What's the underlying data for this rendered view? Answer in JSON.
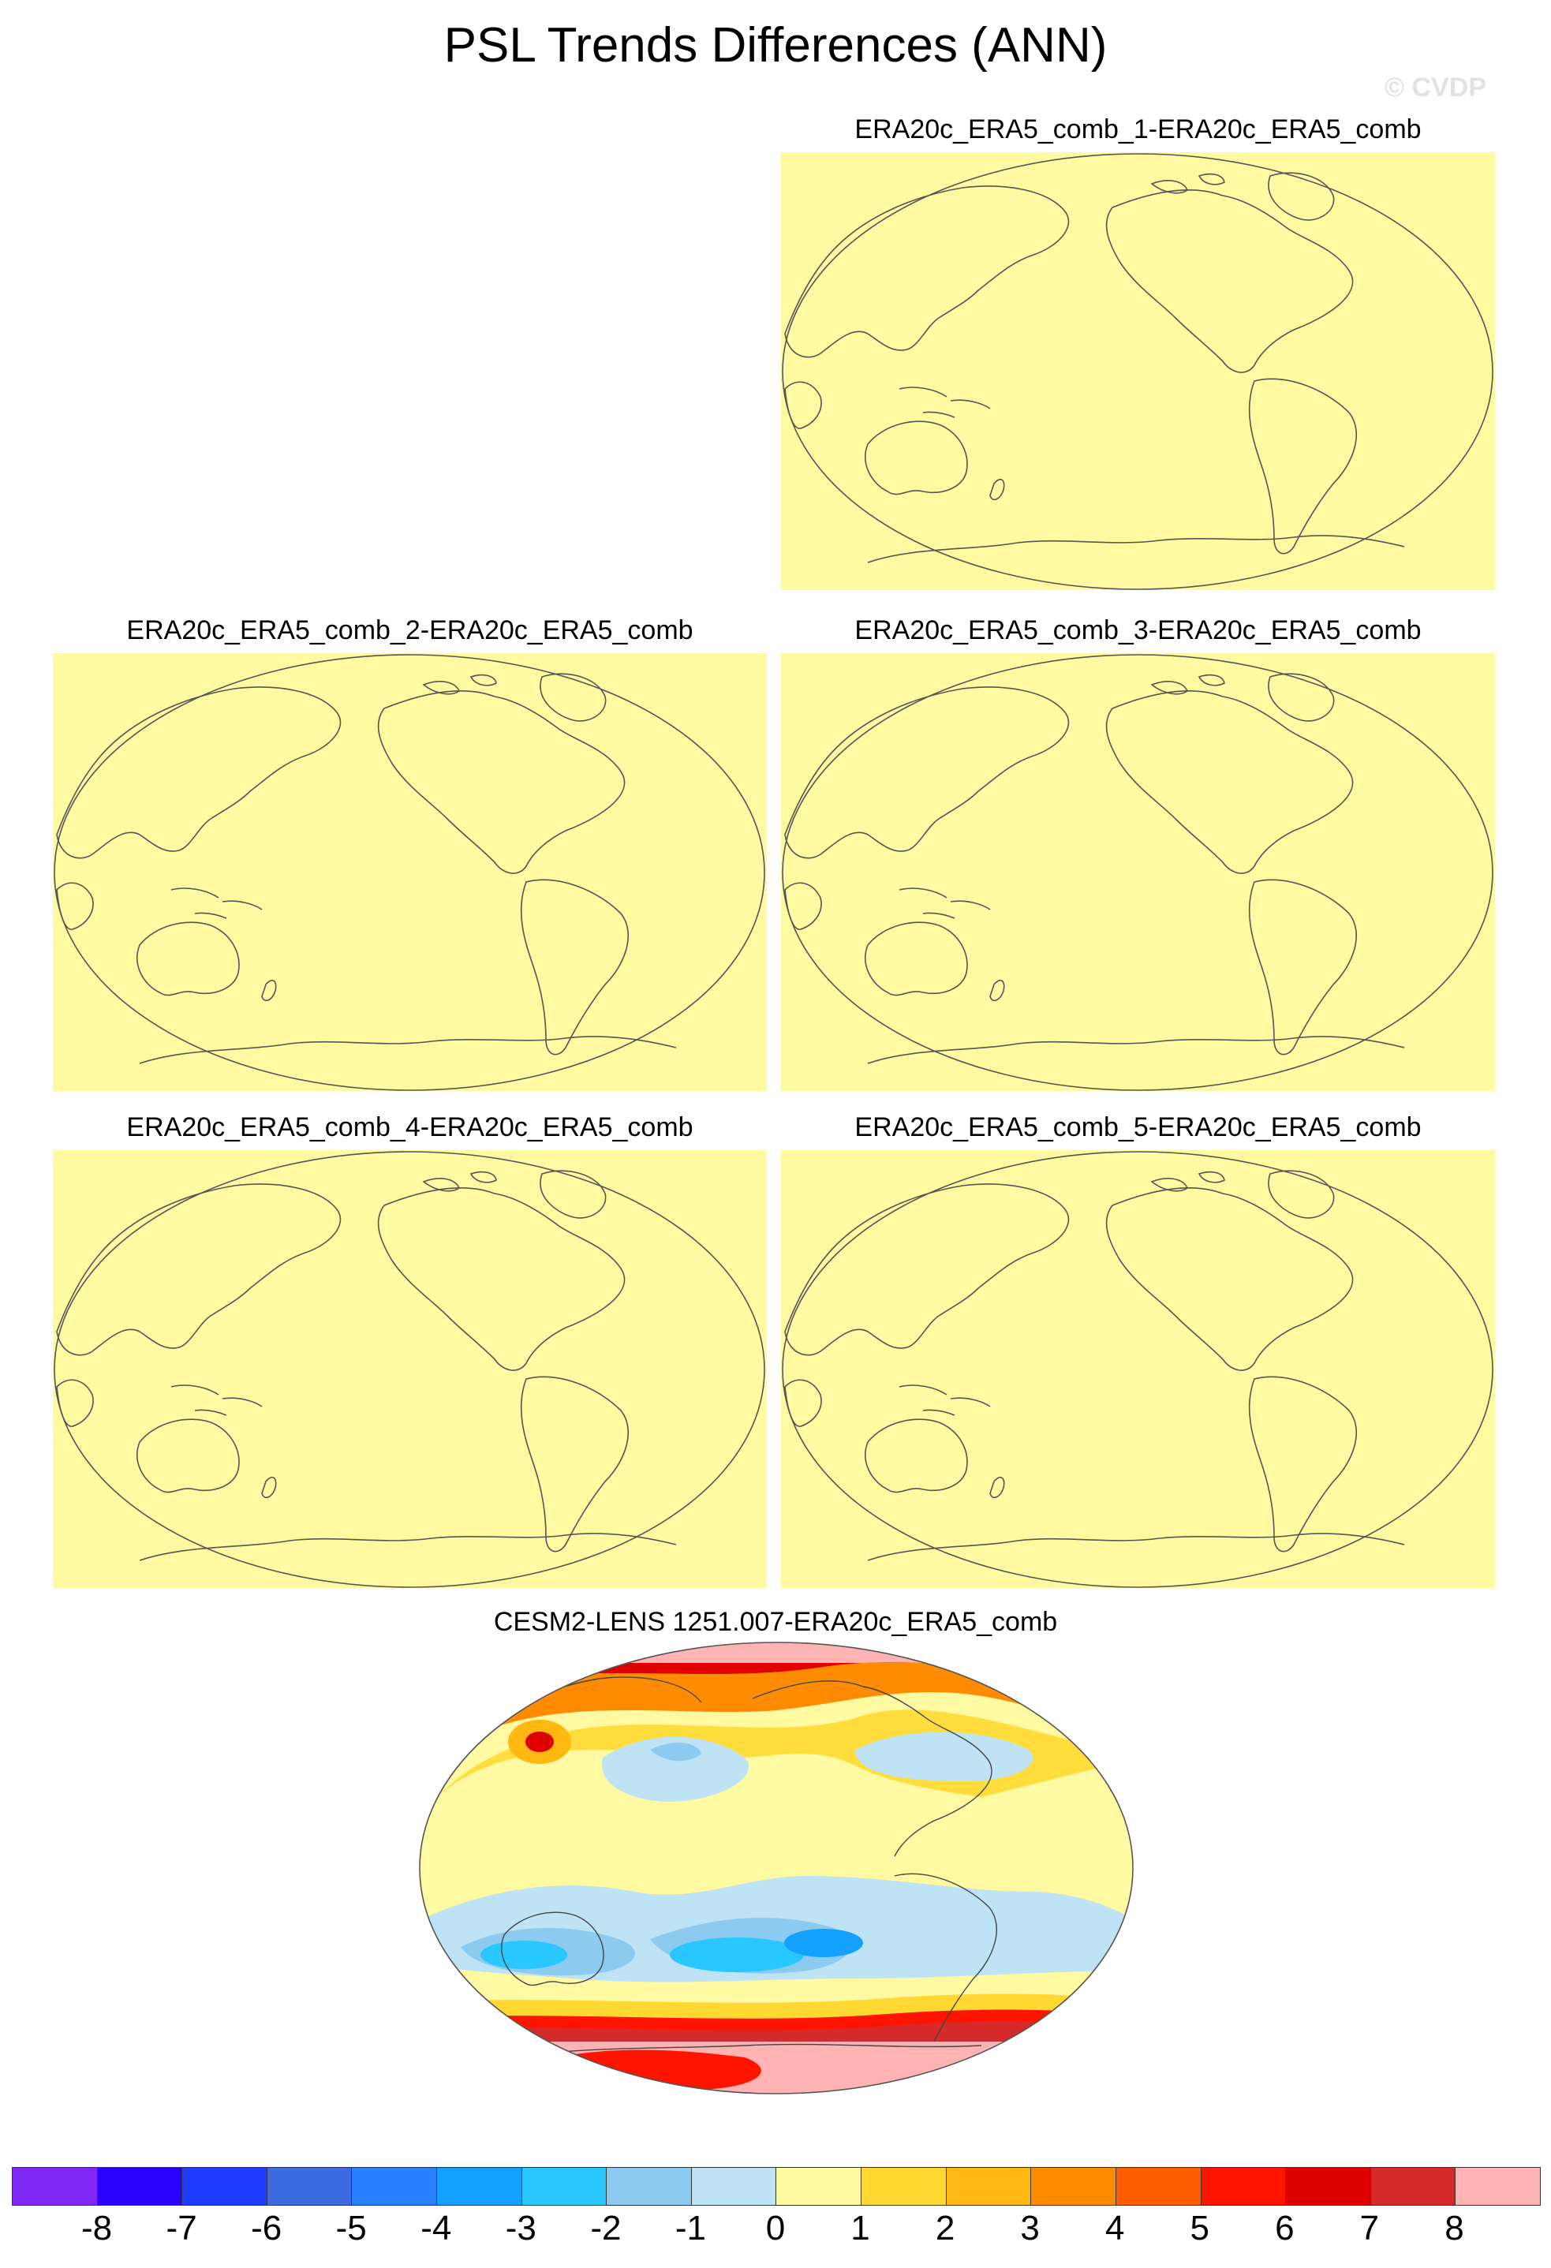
{
  "figure": {
    "title": "PSL Trends Differences (ANN)",
    "watermark": "© CVDP"
  },
  "panels": [
    {
      "title": "ERA20c_ERA5_comb_1-ERA20c_ERA5_comb",
      "fill_color": "#fff9a1"
    },
    {
      "title": "ERA20c_ERA5_comb_2-ERA20c_ERA5_comb",
      "fill_color": "#fff9a1"
    },
    {
      "title": "ERA20c_ERA5_comb_3-ERA20c_ERA5_comb",
      "fill_color": "#fff9a1"
    },
    {
      "title": "ERA20c_ERA5_comb_4-ERA20c_ERA5_comb",
      "fill_color": "#fff9a1"
    },
    {
      "title": "ERA20c_ERA5_comb_5-ERA20c_ERA5_comb",
      "fill_color": "#fff9a1"
    }
  ],
  "bottom_panel": {
    "title": "CESM2-LENS 1251.007-ERA20c_ERA5_comb"
  },
  "colorbar": {
    "colors": [
      "#7f27f5",
      "#2a00ff",
      "#1e3cff",
      "#3c6be0",
      "#2882ff",
      "#14a0ff",
      "#28c8ff",
      "#8ccaf0",
      "#bde3f5",
      "#fff9a1",
      "#ffd931",
      "#ffb812",
      "#ff8c00",
      "#ff5e00",
      "#ff1400",
      "#e00000",
      "#d62a2a",
      "#ffb3b3"
    ],
    "labels": [
      "-8",
      "-7",
      "-6",
      "-5",
      "-4",
      "-3",
      "-2",
      "-1",
      "0",
      "1",
      "2",
      "3",
      "4",
      "5",
      "6",
      "7",
      "8"
    ]
  }
}
